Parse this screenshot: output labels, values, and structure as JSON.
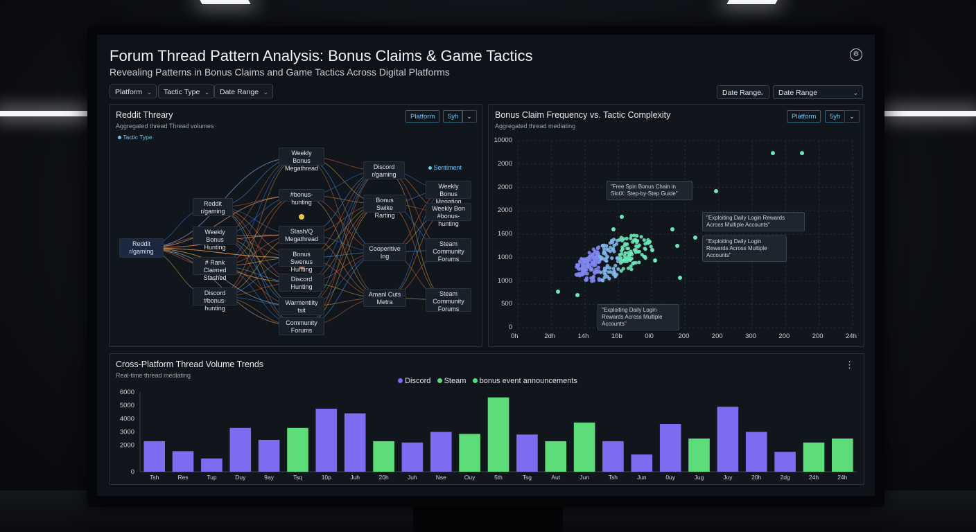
{
  "header": {
    "title": "Forum Thread Pattern Analysis: Bonus Claims & Game Tactics",
    "subtitle": "Revealing Patterns in Bonus Claims and Game Tactics Across Digital Platforms",
    "settings_icon": "gear-icon"
  },
  "filters_left": [
    {
      "label": "Platform"
    },
    {
      "label": "Tactic Type"
    },
    {
      "label": "Date Range"
    }
  ],
  "filters_right": [
    {
      "label": "Date Range"
    },
    {
      "label": "Date Range"
    }
  ],
  "network_panel": {
    "title": "Reddit Threary",
    "subtitle": "Aggregated thread Thread volumes",
    "legend": "Tactic Type",
    "chips": [
      "Platform",
      "5yh"
    ],
    "side_label": "Sentiment",
    "nodes": [
      "Reddit r/gaming",
      "Reddit r/gaming",
      "Weekly Bonus Hunting",
      "# Rank Claimed Stashed",
      "Discord #bonus-hunting",
      "Weekly Bonus Megathread",
      "#bonus-hunting",
      "Stash/Q Megathread",
      "Bonus Swenus Hunting",
      "Discord Hunting",
      "Warmentiity tsit",
      "Community Forums",
      "Discord r/gaming",
      "Bonus Swike Rarting",
      "Cooperitive Ing",
      "Amanl Cuts Metra",
      "Weekly Bonus Megating",
      "Weekly Bon #bonus-hunting",
      "Steam Community Forums",
      "Steam Community Forums"
    ]
  },
  "scatter_panel": {
    "title": "Bonus Claim Frequency vs. Tactic Complexity",
    "subtitle": "Aggregated thread mediating",
    "chips": [
      "Platform",
      "5yh"
    ],
    "y_ticks": [
      "10000",
      "2000",
      "2000",
      "2000",
      "1600",
      "1000",
      "1000",
      "500",
      "0"
    ],
    "x_ticks": [
      "0h",
      "2dh",
      "14h",
      "10b",
      "0l0",
      "200",
      "200",
      "300",
      "200",
      "200",
      "24h"
    ],
    "annotations": [
      "\"Free Spin Bonus Chain in SlotX: Step-by-Step Guide\"",
      "\"Exploiting Daily Login Rewards Across Multiple Accounts\"",
      "\"Exploiting Daily Login Rewards Across Multiple Accounts\"",
      "\"Exploiting Daily Login Rewards Across Multiple Accounts\""
    ]
  },
  "bar_panel": {
    "title": "Cross-Platform Thread Volume Trends",
    "subtitle": "Real-time thread mediating",
    "menu_icon": "more-vertical-icon"
  },
  "colors": {
    "discord": "#7b6cf0",
    "steam": "#5ddc7a",
    "accent": "#6cc7ef"
  },
  "chart_data": {
    "type": "bar",
    "legend": [
      "Discord",
      "Steam",
      "bonus event announcements"
    ],
    "ylim": [
      0,
      6000
    ],
    "y_ticks": [
      0,
      2000,
      3000,
      4000,
      5000,
      6000
    ],
    "categories": [
      "Tsh",
      "Res",
      "Tup",
      "Duy",
      "9ay",
      "Tsq",
      "10p",
      "Juh",
      "20h",
      "Juh",
      "Nse",
      "Ouy",
      "5th",
      "Tsg",
      "Aut",
      "Jun",
      "Tsh",
      "Jun",
      "0uy",
      "Jug",
      "Juy",
      "20h",
      "2dg",
      "24h",
      "24h"
    ],
    "values": [
      2300,
      1550,
      1000,
      3300,
      2400,
      3300,
      4750,
      4400,
      2300,
      2200,
      3000,
      2850,
      5600,
      2800,
      2300,
      3700,
      2300,
      1300,
      3600,
      2500,
      4900,
      3000,
      1500,
      2200,
      2500
    ],
    "series_index": [
      0,
      0,
      0,
      0,
      0,
      1,
      0,
      0,
      1,
      0,
      0,
      1,
      1,
      0,
      1,
      1,
      0,
      0,
      0,
      1,
      0,
      0,
      0,
      1,
      1
    ]
  }
}
